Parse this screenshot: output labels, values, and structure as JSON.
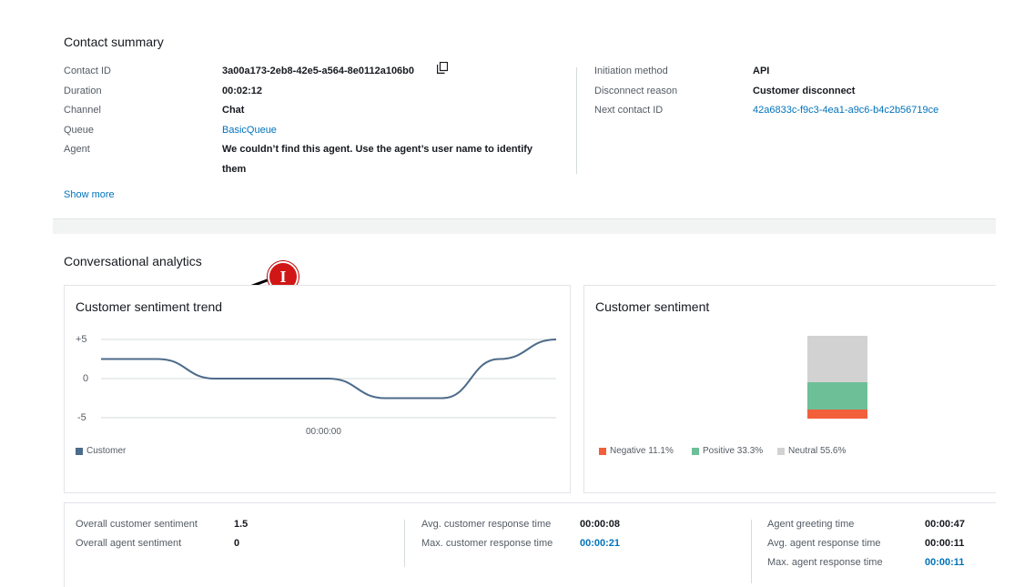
{
  "contact_summary": {
    "title": "Contact summary",
    "left": [
      {
        "label": "Contact ID",
        "value": "3a00a173-2eb8-42e5-a564-8e0112a106b0"
      },
      {
        "label": "Duration",
        "value": "00:02:12"
      },
      {
        "label": "Channel",
        "value": "Chat"
      },
      {
        "label": "Queue",
        "value": "BasicQueue"
      },
      {
        "label": "Agent",
        "value": "We couldn’t find this agent. Use the agent’s user name to identify",
        "value_line2": "them"
      }
    ],
    "right": [
      {
        "label": "Initiation method",
        "value": "API"
      },
      {
        "label": "Disconnect reason",
        "value": "Customer disconnect"
      },
      {
        "label": "Next contact ID",
        "value": "42a6833c-f9c3-4ea1-a9c6-b4c2b56719ce"
      }
    ],
    "show_more": "Show more",
    "copy_icon": "copy-icon"
  },
  "analytics": {
    "title": "Conversational analytics",
    "marker_label": "I"
  },
  "sentiment_trend": {
    "title": "Customer sentiment trend",
    "y_ticks": [
      "+5",
      "0",
      "-5"
    ],
    "x_tick": "00:00:00",
    "legend": "Customer",
    "color": "#4d6b8a"
  },
  "customer_sentiment": {
    "title": "Customer sentiment",
    "legend": [
      {
        "label": "Negative 11.1%",
        "color": "#f25f3a"
      },
      {
        "label": "Positive 33.3%",
        "color": "#6dbf98"
      },
      {
        "label": "Neutral 55.6%",
        "color": "#d2d2d2"
      }
    ]
  },
  "chart_data": [
    {
      "type": "line",
      "title": "Customer sentiment trend",
      "ylim": [
        -5,
        5
      ],
      "y_ticks": [
        "+5",
        "0",
        "-5"
      ],
      "x_tick_labels": [
        "00:00:00"
      ],
      "series": [
        {
          "name": "Customer",
          "values": [
            2.5,
            2.5,
            0,
            0,
            0,
            -2.5,
            -2.5,
            2.5,
            5
          ]
        }
      ]
    },
    {
      "type": "bar",
      "title": "Customer sentiment",
      "stacked": true,
      "series": [
        {
          "name": "Negative",
          "value": 11.1
        },
        {
          "name": "Positive",
          "value": 33.3
        },
        {
          "name": "Neutral",
          "value": 55.6
        }
      ]
    }
  ],
  "stats": {
    "col1": [
      {
        "label": "Overall customer sentiment",
        "value": "1.5"
      },
      {
        "label": "Overall agent sentiment",
        "value": "0"
      }
    ],
    "col2": [
      {
        "label": "Avg. customer response time",
        "value": "00:00:08"
      },
      {
        "label": "Max. customer response time",
        "value": "00:00:21"
      }
    ],
    "col3": [
      {
        "label": "Agent greeting time",
        "value": "00:00:47"
      },
      {
        "label": "Avg. agent response time",
        "value": "00:00:11"
      },
      {
        "label": "Max. agent response time",
        "value": "00:00:11"
      }
    ]
  }
}
